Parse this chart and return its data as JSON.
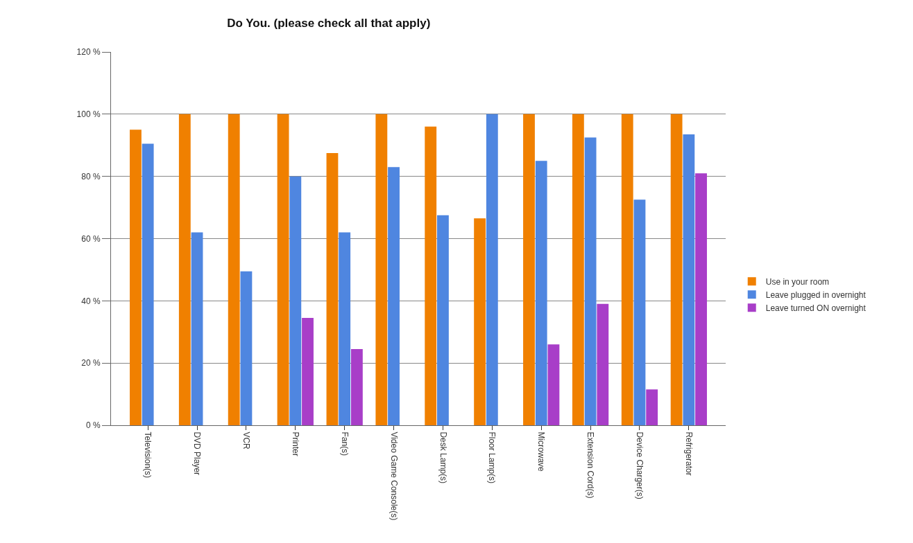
{
  "chart_data": {
    "type": "bar",
    "title": "Do You. (please check all that apply)",
    "categories": [
      "Television(s)",
      "DVD Player",
      "VCR",
      "Printer",
      "Fan(s)",
      "Video Game Console(s)",
      "Desk Lamp(s)",
      "Floor Lamp(s)",
      "Microwave",
      "Extension Cord(s)",
      "Device Charger(s)",
      "Refrigerator"
    ],
    "series": [
      {
        "name": "Use in your room",
        "color": "#f08000",
        "values": [
          95,
          100,
          100,
          100,
          87.5,
          100,
          96,
          66.5,
          100,
          100,
          100,
          100
        ]
      },
      {
        "name": "Leave plugged in overnight",
        "color": "#4f86e0",
        "values": [
          90.5,
          62,
          49.5,
          80,
          62,
          83,
          67.5,
          100,
          85,
          92.5,
          72.5,
          93.5
        ]
      },
      {
        "name": "Leave turned ON overnight",
        "color": "#a83ec8",
        "values": [
          null,
          null,
          null,
          34.5,
          24.5,
          null,
          null,
          null,
          26,
          39,
          11.5,
          81
        ]
      }
    ],
    "ylim": [
      0,
      120
    ],
    "yticks": [
      {
        "value": 0,
        "label": "0 %"
      },
      {
        "value": 20,
        "label": "20 %"
      },
      {
        "value": 40,
        "label": "40 %"
      },
      {
        "value": 60,
        "label": "60 %"
      },
      {
        "value": 80,
        "label": "80 %"
      },
      {
        "value": 100,
        "label": "100 %"
      },
      {
        "value": 120,
        "label": "120 %"
      }
    ],
    "grid": "y",
    "legend": "right"
  }
}
